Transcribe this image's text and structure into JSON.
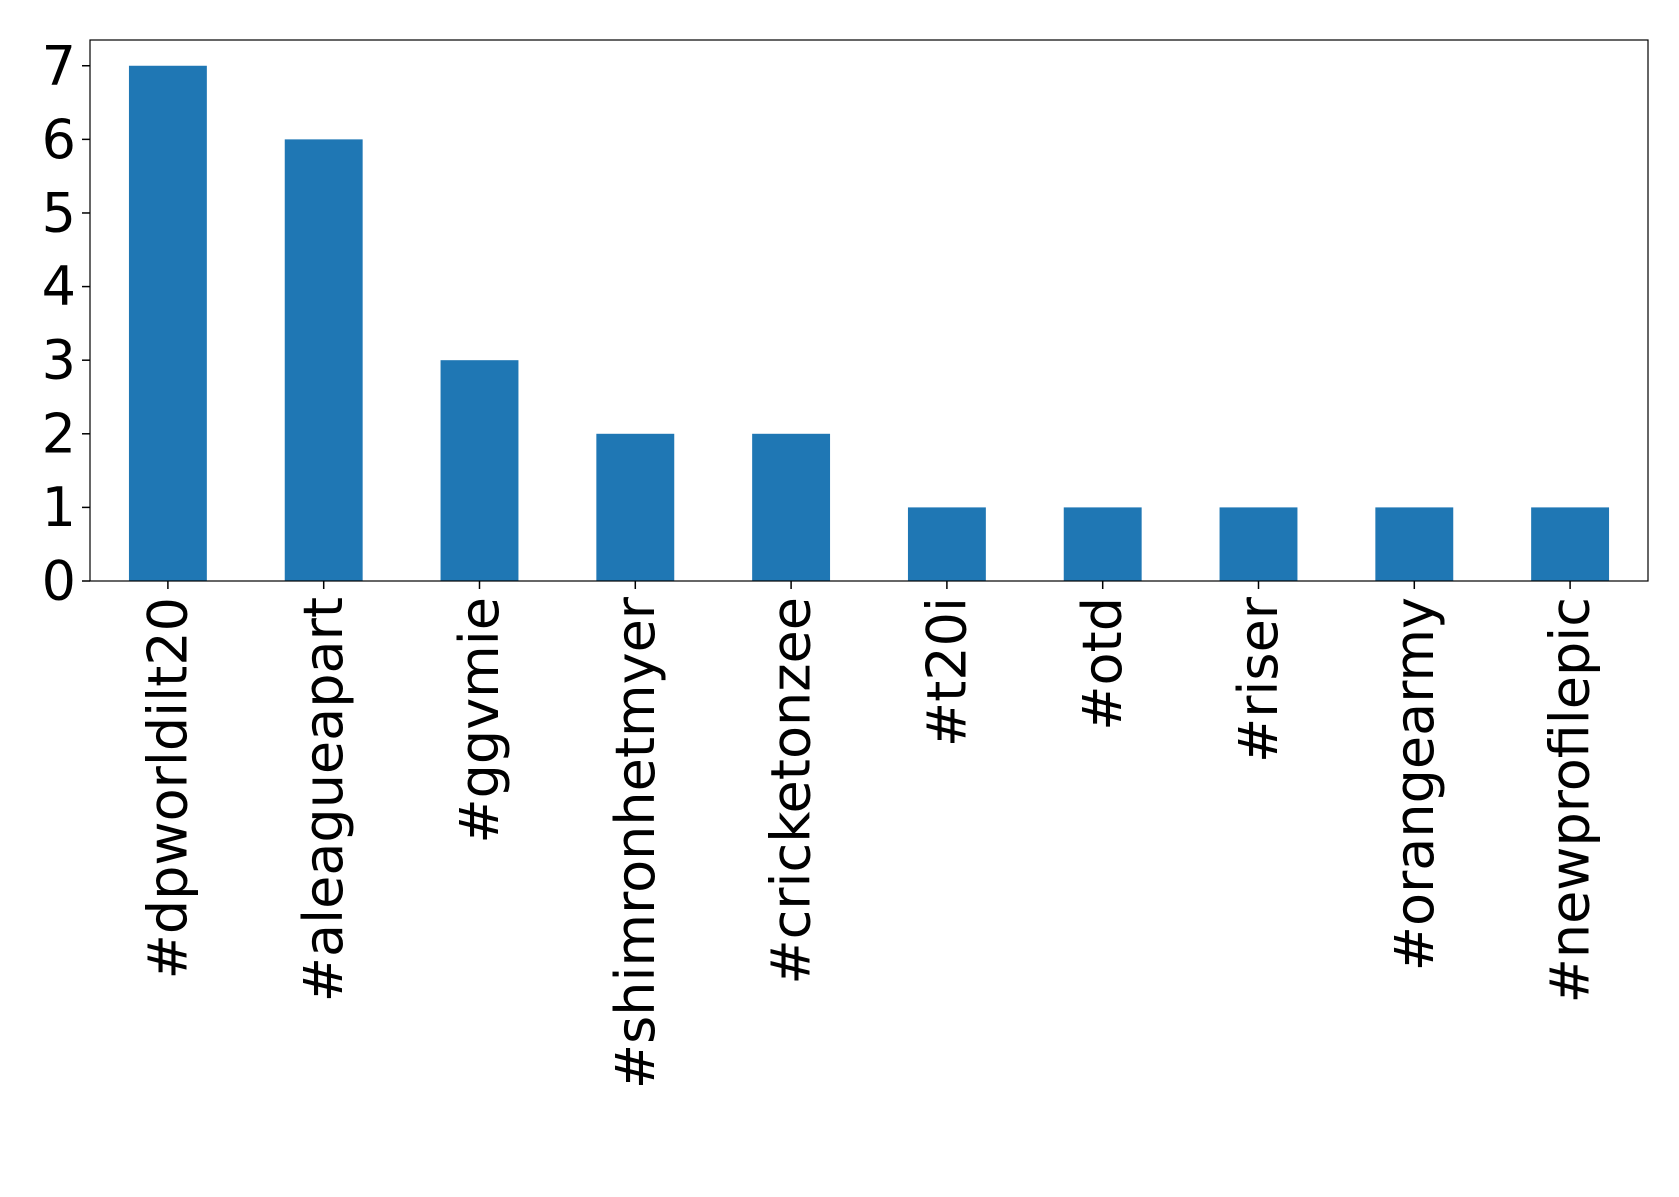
{
  "chart_data": {
    "type": "bar",
    "categories": [
      "#dpworldilt20",
      "#aleagueapart",
      "#ggvmie",
      "#shimronhetmyer",
      "#cricketonzee",
      "#t20i",
      "#otd",
      "#riser",
      "#orangearmy",
      "#newprofilepic"
    ],
    "values": [
      7,
      6,
      3,
      2,
      2,
      1,
      1,
      1,
      1,
      1
    ],
    "color": "#1f77b4",
    "ylim": [
      0,
      7.35
    ],
    "yticks": [
      0,
      1,
      2,
      3,
      4,
      5,
      6,
      7
    ],
    "grid": false
  }
}
